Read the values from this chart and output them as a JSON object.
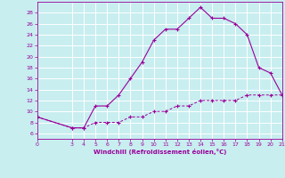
{
  "xlabel": "Windchill (Refroidissement éolien,°C)",
  "bg_color": "#c8eef0",
  "grid_color": "#ffffff",
  "line_color": "#990099",
  "hours": [
    0,
    3,
    4,
    5,
    6,
    7,
    8,
    9,
    10,
    11,
    12,
    13,
    14,
    15,
    16,
    17,
    18,
    19,
    20,
    21
  ],
  "temp": [
    9,
    7,
    7,
    11,
    11,
    13,
    16,
    19,
    23,
    25,
    25,
    27,
    29,
    27,
    27,
    26,
    24,
    18,
    17,
    13
  ],
  "windchill": [
    9,
    7,
    7,
    8,
    8,
    8,
    9,
    9,
    10,
    10,
    11,
    11,
    12,
    12,
    12,
    12,
    13,
    13,
    13,
    13
  ],
  "ylim": [
    5,
    30
  ],
  "xlim": [
    0,
    21
  ],
  "yticks": [
    6,
    8,
    10,
    12,
    14,
    16,
    18,
    20,
    22,
    24,
    26,
    28
  ],
  "xticks": [
    0,
    3,
    4,
    5,
    6,
    7,
    8,
    9,
    10,
    11,
    12,
    13,
    14,
    15,
    16,
    17,
    18,
    19,
    20,
    21
  ]
}
